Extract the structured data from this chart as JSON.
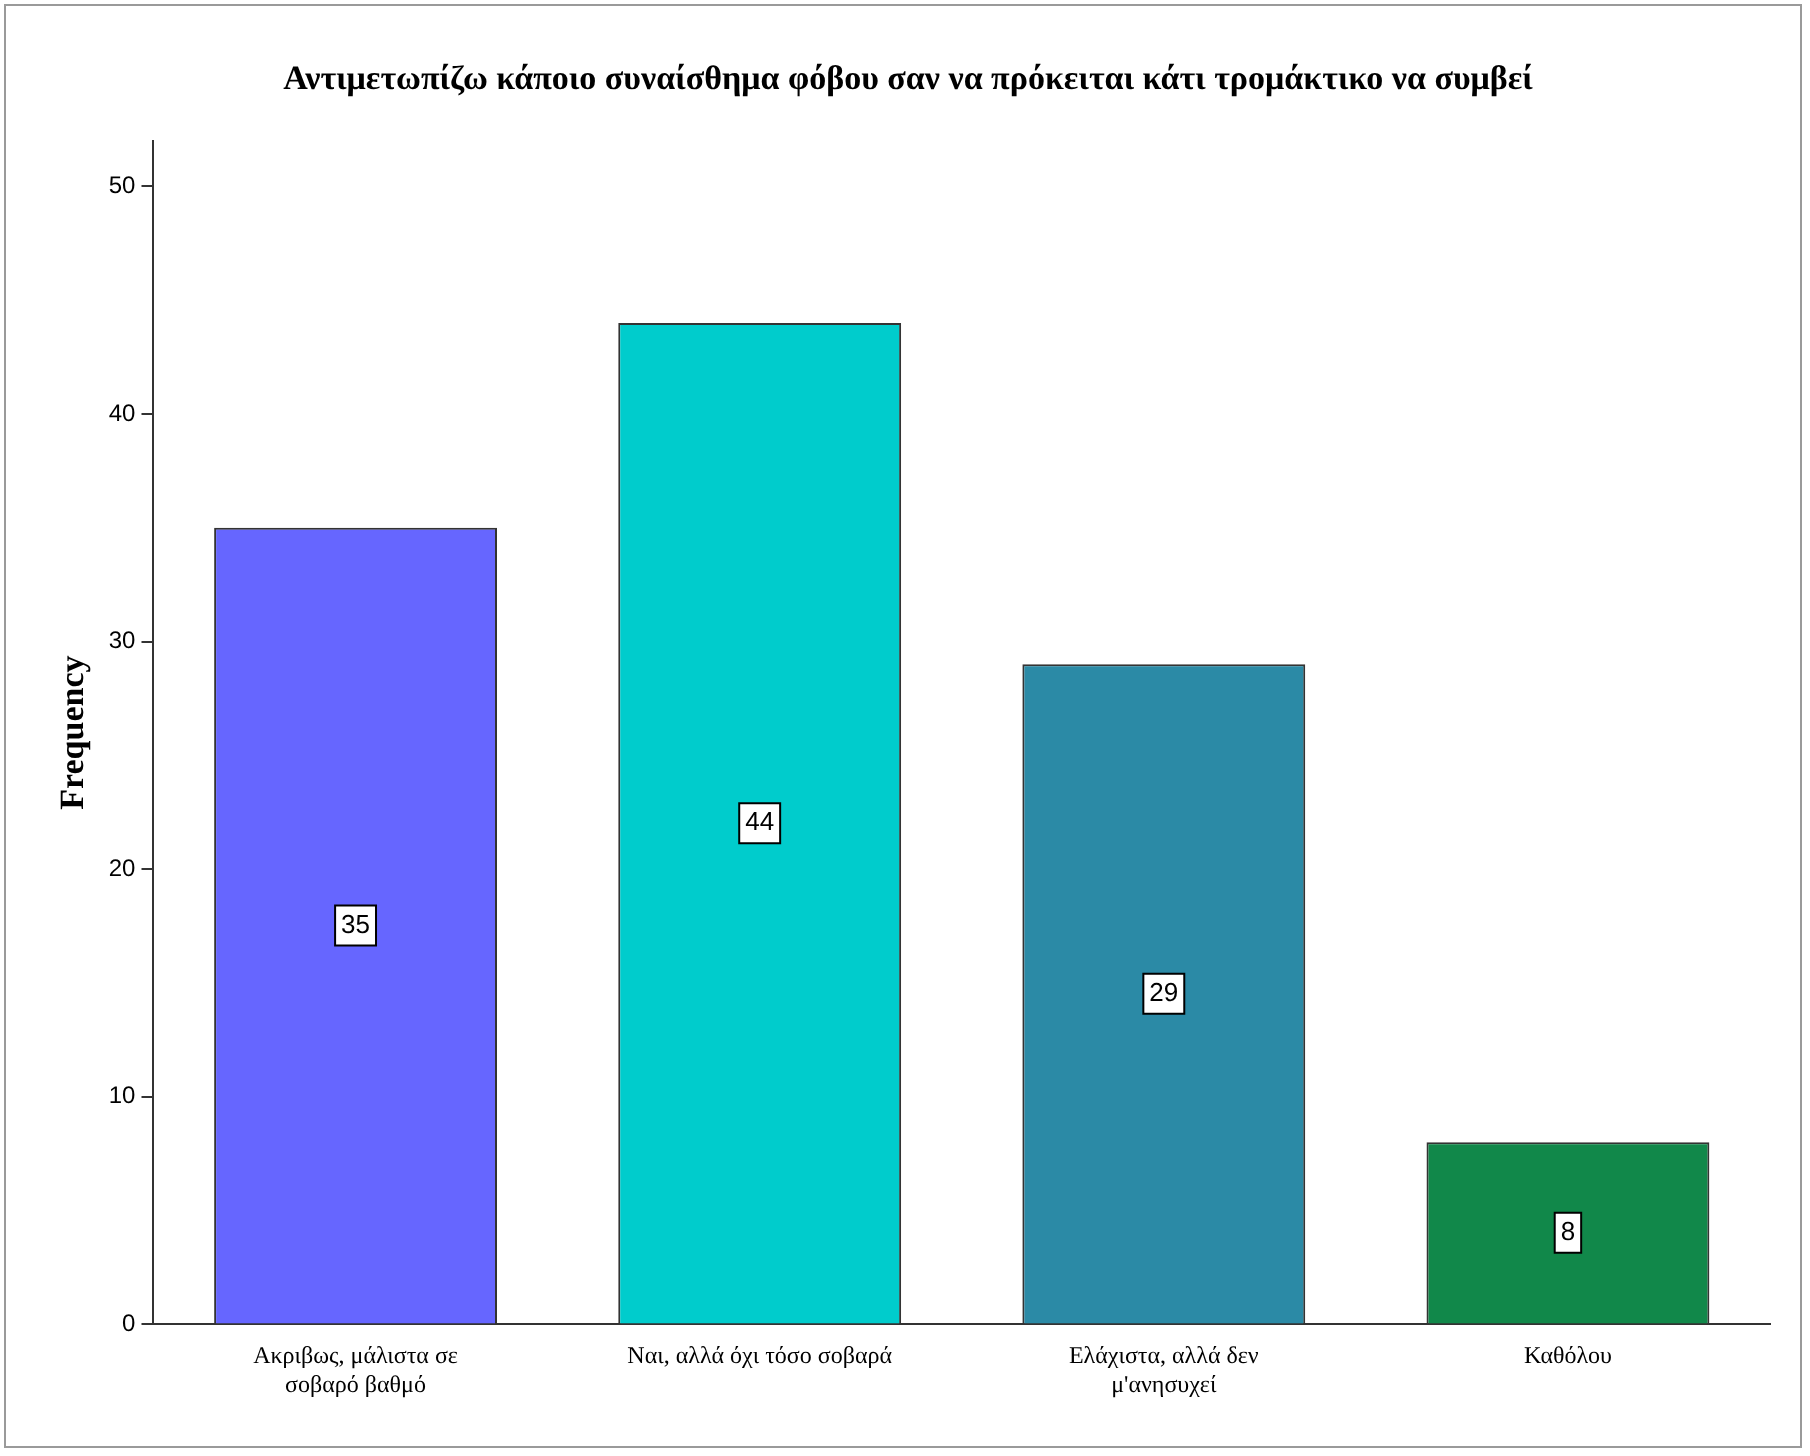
{
  "chart_data": {
    "type": "bar",
    "title": "Αντιμετωπίζω κάποιο συναίσθημα φόβου σαν να πρόκειται κάτι τρομάκτικο να συμβεί",
    "ylabel": "Frequency",
    "categories": [
      "Ακριβως, μάλιστα σε σοβαρό βαθμό",
      "Ναι, αλλά όχι τόσο σοβαρά",
      "Ελάχιστα, αλλά δεν μ'ανησυχεί",
      "Καθόλου"
    ],
    "values": [
      35,
      44,
      29,
      8
    ],
    "colors": [
      "#6666ff",
      "#00cccc",
      "#2b8aa6",
      "#11884a"
    ],
    "ylim": [
      0,
      52
    ],
    "yticks": [
      0,
      10,
      20,
      30,
      40,
      50
    ],
    "grid": false,
    "data_labels": true
  }
}
